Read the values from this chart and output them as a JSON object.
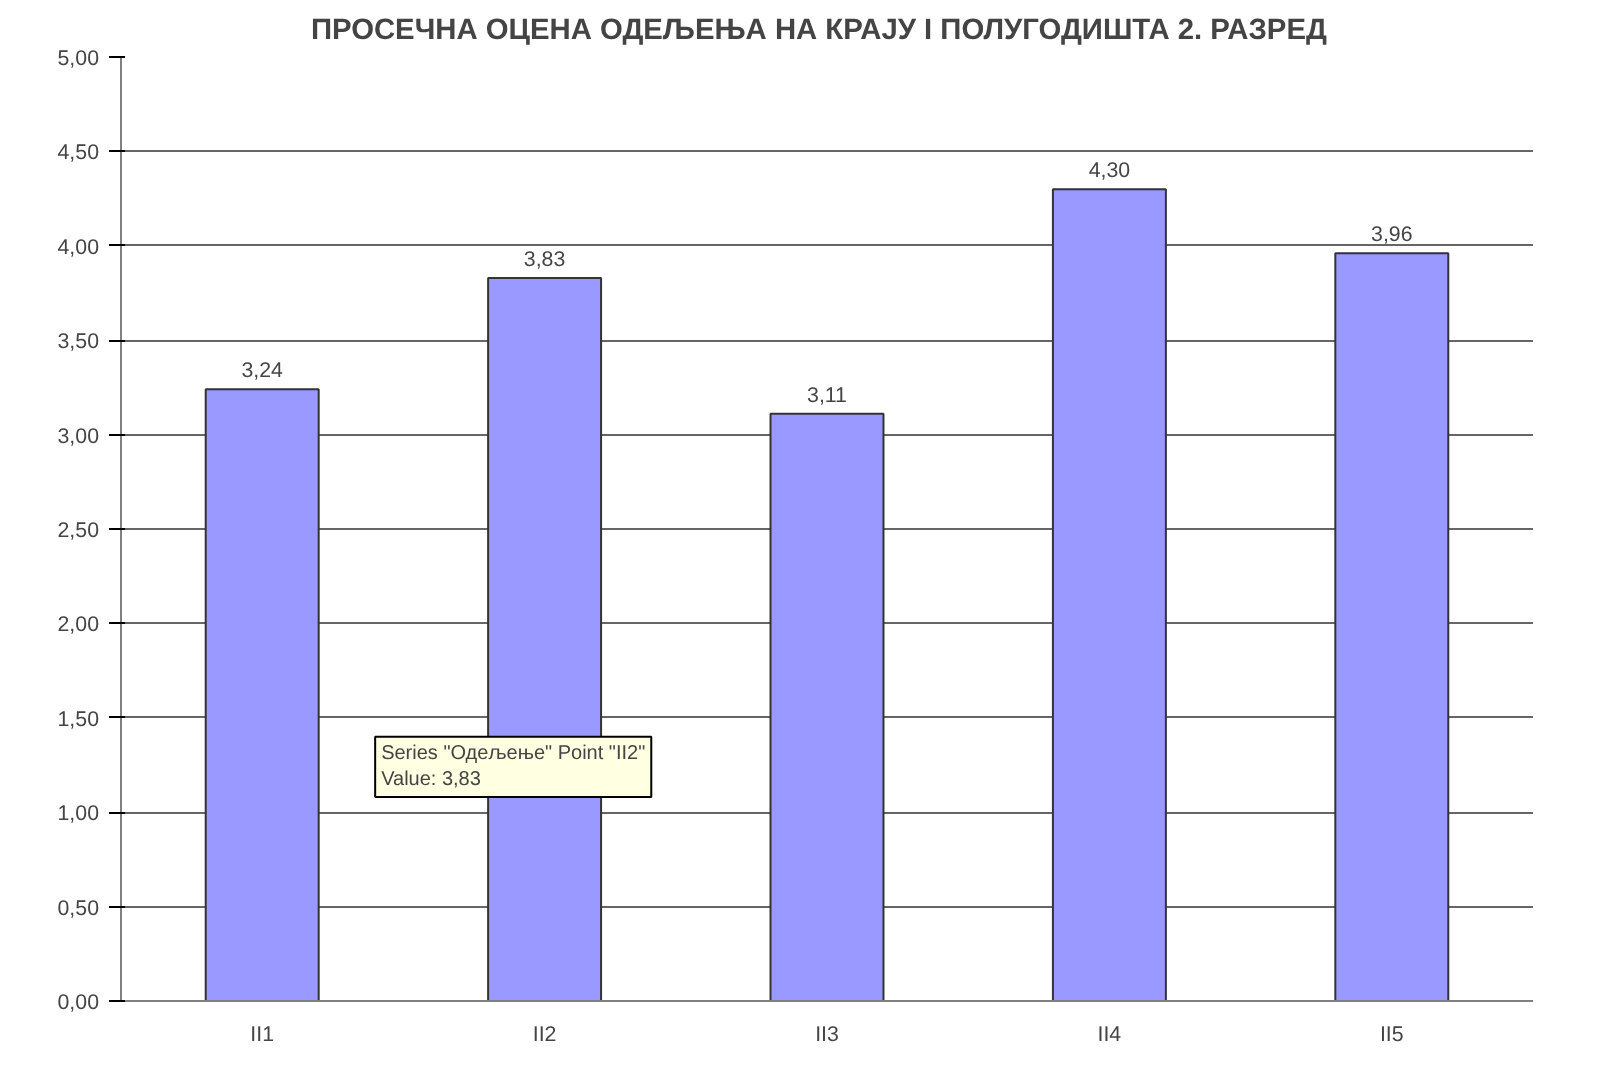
{
  "chart_data": {
    "type": "bar",
    "title": "ПРОСЕЧНА ОЦЕНА ОДЕЉЕЊА  НА КРАЈУ  I ПОЛУГОДИШТА 2. РАЗРЕД",
    "categories": [
      "II1",
      "II2",
      "II3",
      "II4",
      "II5"
    ],
    "values": [
      3.24,
      3.83,
      3.11,
      4.3,
      3.96
    ],
    "value_labels": [
      "3,24",
      "3,83",
      "3,11",
      "4,30",
      "3,96"
    ],
    "color": "#9999ff",
    "ylim": [
      0,
      5
    ],
    "yticks": [
      {
        "value": 0,
        "label": "0,00"
      },
      {
        "value": 0.5,
        "label": "0,50"
      },
      {
        "value": 1,
        "label": "1,00"
      },
      {
        "value": 1.5,
        "label": "1,50"
      },
      {
        "value": 2,
        "label": "2,00"
      },
      {
        "value": 2.5,
        "label": "2,50"
      },
      {
        "value": 3,
        "label": "3,00"
      },
      {
        "value": 3.5,
        "label": "3,50"
      },
      {
        "value": 4,
        "label": "4,00"
      },
      {
        "value": 4.5,
        "label": "4,50"
      },
      {
        "value": 5,
        "label": "5,00"
      }
    ],
    "grid": "y",
    "annotations": [
      "Series \"Одељење\" Point \"II2\"\nValue: 3,83"
    ]
  }
}
